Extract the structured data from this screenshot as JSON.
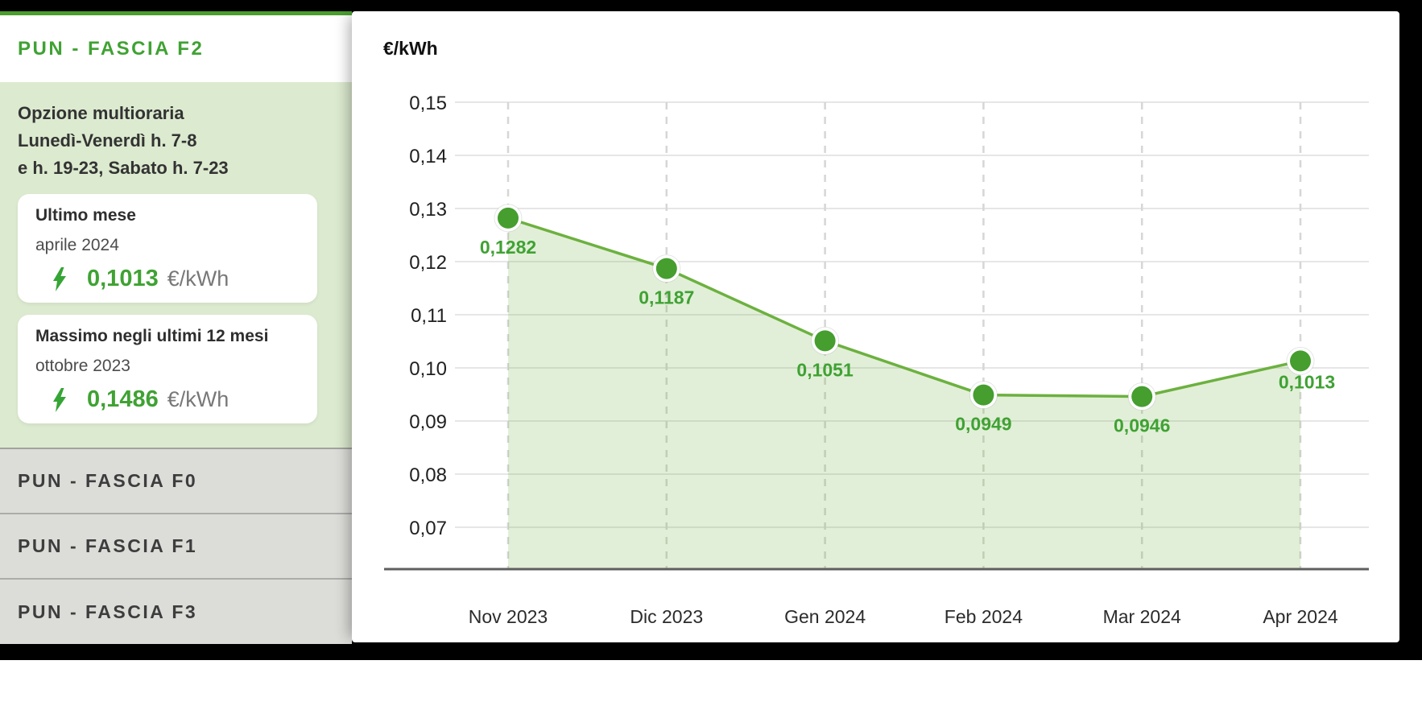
{
  "sidebar": {
    "active_tab_label": "PUN - FASCIA F2",
    "option_lines": [
      "Opzione multioraria",
      "Lunedì-Venerdì h. 7-8",
      "e h. 19-23, Sabato h. 7-23"
    ],
    "cards": [
      {
        "title": "Ultimo mese",
        "period": "aprile 2024",
        "value": "0,1013",
        "unit": "€/kWh"
      },
      {
        "title": "Massimo negli ultimi 12 mesi",
        "period": "ottobre 2023",
        "value": "0,1486",
        "unit": "€/kWh"
      }
    ],
    "other_tabs": [
      "PUN - FASCIA F0",
      "PUN - FASCIA F1",
      "PUN - FASCIA F3"
    ]
  },
  "chart_data": {
    "type": "area",
    "title": "",
    "ylabel": "€/kWh",
    "x": [
      "Nov 2023",
      "Dic 2023",
      "Gen 2024",
      "Feb 2024",
      "Mar 2024",
      "Apr 2024"
    ],
    "values": [
      0.1282,
      0.1187,
      0.1051,
      0.0949,
      0.0946,
      0.1013
    ],
    "point_labels": [
      "0,1282",
      "0,1187",
      "0,1051",
      "0,0949",
      "0,0946",
      "0,1013"
    ],
    "yticks": {
      "values": [
        0.15,
        0.14,
        0.13,
        0.12,
        0.11,
        0.1,
        0.09,
        0.08,
        0.07
      ],
      "labels": [
        "0,15",
        "0,14",
        "0,13",
        "0,12",
        "0,11",
        "0,10",
        "0,09",
        "0,08",
        "0,07"
      ]
    },
    "ylim": [
      0.062,
      0.152
    ],
    "grid": true,
    "legend": false
  },
  "colors": {
    "accent_green": "#3fa233",
    "line_green": "#6cb13f",
    "dot_green": "#459e2e",
    "area_fill": "rgba(108,177,62,0.20)",
    "bolt_green": "#35a535",
    "panel_bg": "#dceacf",
    "tabs_bg": "#dcdcd9",
    "grid_line": "#e6e6e6",
    "dashed_grid": "#d6d6d4",
    "axis_line": "#5f5f5f",
    "tick_text": "#1f1f1f",
    "xlabel_text": "#2b2b2b",
    "frame_black": "#000000",
    "top_green_bar": "#4a9e2e"
  }
}
